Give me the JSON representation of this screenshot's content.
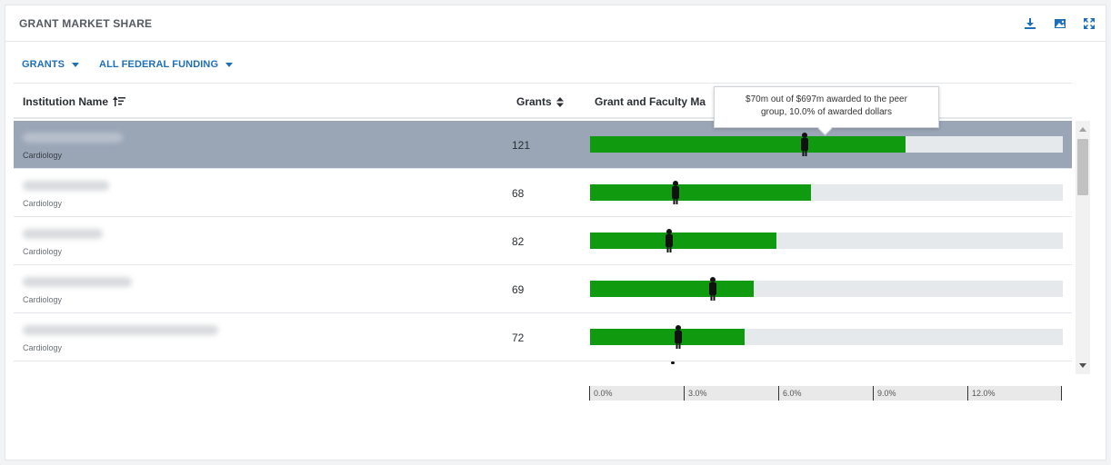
{
  "panel": {
    "title": "GRANT MARKET SHARE",
    "icons": [
      "download-icon",
      "image-icon",
      "expand-icon"
    ]
  },
  "filters": [
    {
      "label": "GRANTS"
    },
    {
      "label": "ALL FEDERAL FUNDING"
    }
  ],
  "table": {
    "columns": {
      "institution": "Institution Name",
      "grants": "Grants",
      "share": "Grant and Faculty Ma"
    },
    "rows": [
      {
        "department": "Cardiology",
        "grants": "121",
        "share_pct": 10.0,
        "faculty_pct": 6.8,
        "selected": true
      },
      {
        "department": "Cardiology",
        "grants": "68",
        "share_pct": 7.0,
        "faculty_pct": 2.7,
        "selected": false
      },
      {
        "department": "Cardiology",
        "grants": "82",
        "share_pct": 5.9,
        "faculty_pct": 2.5,
        "selected": false
      },
      {
        "department": "Cardiology",
        "grants": "69",
        "share_pct": 5.2,
        "faculty_pct": 3.9,
        "selected": false
      },
      {
        "department": "Cardiology",
        "grants": "72",
        "share_pct": 4.9,
        "faculty_pct": 2.8,
        "selected": false
      }
    ]
  },
  "axis": {
    "max_pct": 15.0,
    "ticks": [
      "0.0%",
      "3.0%",
      "6.0%",
      "9.0%",
      "12.0%"
    ]
  },
  "tooltip": {
    "line1": "$70m out of $697m awarded to the peer",
    "line2": "group, 10.0% of awarded dollars"
  },
  "colors": {
    "accent": "#1f6fb8",
    "bar_fill": "#0f9a10",
    "selected_row": "#9aa5b6"
  }
}
